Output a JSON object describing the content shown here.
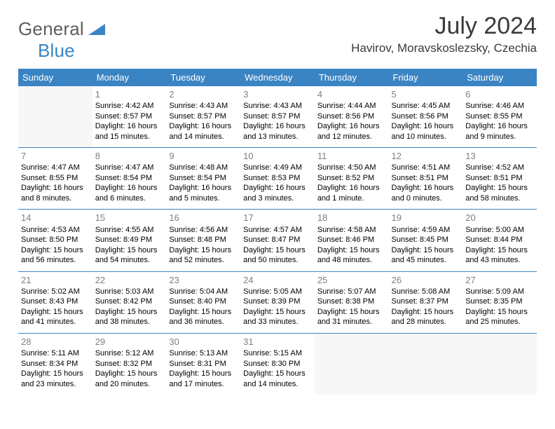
{
  "logo": {
    "word1": "General",
    "word2": "Blue"
  },
  "title": "July 2024",
  "location": "Havirov, Moravskoslezsky, Czechia",
  "colors": {
    "accent": "#3b84c4",
    "header_text": "#ffffff",
    "title_text": "#3a3a3a",
    "daynum_text": "#808080",
    "body_text": "#000000",
    "blank_bg": "#f7f7f7",
    "logo_gray": "#5e5e5e"
  },
  "weekdays": [
    "Sunday",
    "Monday",
    "Tuesday",
    "Wednesday",
    "Thursday",
    "Friday",
    "Saturday"
  ],
  "weeks": [
    [
      {
        "blank": true
      },
      {
        "day": "1",
        "sunrise": "Sunrise: 4:42 AM",
        "sunset": "Sunset: 8:57 PM",
        "daylight": "Daylight: 16 hours and 15 minutes."
      },
      {
        "day": "2",
        "sunrise": "Sunrise: 4:43 AM",
        "sunset": "Sunset: 8:57 PM",
        "daylight": "Daylight: 16 hours and 14 minutes."
      },
      {
        "day": "3",
        "sunrise": "Sunrise: 4:43 AM",
        "sunset": "Sunset: 8:57 PM",
        "daylight": "Daylight: 16 hours and 13 minutes."
      },
      {
        "day": "4",
        "sunrise": "Sunrise: 4:44 AM",
        "sunset": "Sunset: 8:56 PM",
        "daylight": "Daylight: 16 hours and 12 minutes."
      },
      {
        "day": "5",
        "sunrise": "Sunrise: 4:45 AM",
        "sunset": "Sunset: 8:56 PM",
        "daylight": "Daylight: 16 hours and 10 minutes."
      },
      {
        "day": "6",
        "sunrise": "Sunrise: 4:46 AM",
        "sunset": "Sunset: 8:55 PM",
        "daylight": "Daylight: 16 hours and 9 minutes."
      }
    ],
    [
      {
        "day": "7",
        "sunrise": "Sunrise: 4:47 AM",
        "sunset": "Sunset: 8:55 PM",
        "daylight": "Daylight: 16 hours and 8 minutes."
      },
      {
        "day": "8",
        "sunrise": "Sunrise: 4:47 AM",
        "sunset": "Sunset: 8:54 PM",
        "daylight": "Daylight: 16 hours and 6 minutes."
      },
      {
        "day": "9",
        "sunrise": "Sunrise: 4:48 AM",
        "sunset": "Sunset: 8:54 PM",
        "daylight": "Daylight: 16 hours and 5 minutes."
      },
      {
        "day": "10",
        "sunrise": "Sunrise: 4:49 AM",
        "sunset": "Sunset: 8:53 PM",
        "daylight": "Daylight: 16 hours and 3 minutes."
      },
      {
        "day": "11",
        "sunrise": "Sunrise: 4:50 AM",
        "sunset": "Sunset: 8:52 PM",
        "daylight": "Daylight: 16 hours and 1 minute."
      },
      {
        "day": "12",
        "sunrise": "Sunrise: 4:51 AM",
        "sunset": "Sunset: 8:51 PM",
        "daylight": "Daylight: 16 hours and 0 minutes."
      },
      {
        "day": "13",
        "sunrise": "Sunrise: 4:52 AM",
        "sunset": "Sunset: 8:51 PM",
        "daylight": "Daylight: 15 hours and 58 minutes."
      }
    ],
    [
      {
        "day": "14",
        "sunrise": "Sunrise: 4:53 AM",
        "sunset": "Sunset: 8:50 PM",
        "daylight": "Daylight: 15 hours and 56 minutes."
      },
      {
        "day": "15",
        "sunrise": "Sunrise: 4:55 AM",
        "sunset": "Sunset: 8:49 PM",
        "daylight": "Daylight: 15 hours and 54 minutes."
      },
      {
        "day": "16",
        "sunrise": "Sunrise: 4:56 AM",
        "sunset": "Sunset: 8:48 PM",
        "daylight": "Daylight: 15 hours and 52 minutes."
      },
      {
        "day": "17",
        "sunrise": "Sunrise: 4:57 AM",
        "sunset": "Sunset: 8:47 PM",
        "daylight": "Daylight: 15 hours and 50 minutes."
      },
      {
        "day": "18",
        "sunrise": "Sunrise: 4:58 AM",
        "sunset": "Sunset: 8:46 PM",
        "daylight": "Daylight: 15 hours and 48 minutes."
      },
      {
        "day": "19",
        "sunrise": "Sunrise: 4:59 AM",
        "sunset": "Sunset: 8:45 PM",
        "daylight": "Daylight: 15 hours and 45 minutes."
      },
      {
        "day": "20",
        "sunrise": "Sunrise: 5:00 AM",
        "sunset": "Sunset: 8:44 PM",
        "daylight": "Daylight: 15 hours and 43 minutes."
      }
    ],
    [
      {
        "day": "21",
        "sunrise": "Sunrise: 5:02 AM",
        "sunset": "Sunset: 8:43 PM",
        "daylight": "Daylight: 15 hours and 41 minutes."
      },
      {
        "day": "22",
        "sunrise": "Sunrise: 5:03 AM",
        "sunset": "Sunset: 8:42 PM",
        "daylight": "Daylight: 15 hours and 38 minutes."
      },
      {
        "day": "23",
        "sunrise": "Sunrise: 5:04 AM",
        "sunset": "Sunset: 8:40 PM",
        "daylight": "Daylight: 15 hours and 36 minutes."
      },
      {
        "day": "24",
        "sunrise": "Sunrise: 5:05 AM",
        "sunset": "Sunset: 8:39 PM",
        "daylight": "Daylight: 15 hours and 33 minutes."
      },
      {
        "day": "25",
        "sunrise": "Sunrise: 5:07 AM",
        "sunset": "Sunset: 8:38 PM",
        "daylight": "Daylight: 15 hours and 31 minutes."
      },
      {
        "day": "26",
        "sunrise": "Sunrise: 5:08 AM",
        "sunset": "Sunset: 8:37 PM",
        "daylight": "Daylight: 15 hours and 28 minutes."
      },
      {
        "day": "27",
        "sunrise": "Sunrise: 5:09 AM",
        "sunset": "Sunset: 8:35 PM",
        "daylight": "Daylight: 15 hours and 25 minutes."
      }
    ],
    [
      {
        "day": "28",
        "sunrise": "Sunrise: 5:11 AM",
        "sunset": "Sunset: 8:34 PM",
        "daylight": "Daylight: 15 hours and 23 minutes."
      },
      {
        "day": "29",
        "sunrise": "Sunrise: 5:12 AM",
        "sunset": "Sunset: 8:32 PM",
        "daylight": "Daylight: 15 hours and 20 minutes."
      },
      {
        "day": "30",
        "sunrise": "Sunrise: 5:13 AM",
        "sunset": "Sunset: 8:31 PM",
        "daylight": "Daylight: 15 hours and 17 minutes."
      },
      {
        "day": "31",
        "sunrise": "Sunrise: 5:15 AM",
        "sunset": "Sunset: 8:30 PM",
        "daylight": "Daylight: 15 hours and 14 minutes."
      },
      {
        "blank": true
      },
      {
        "blank": true
      },
      {
        "blank": true
      }
    ]
  ]
}
